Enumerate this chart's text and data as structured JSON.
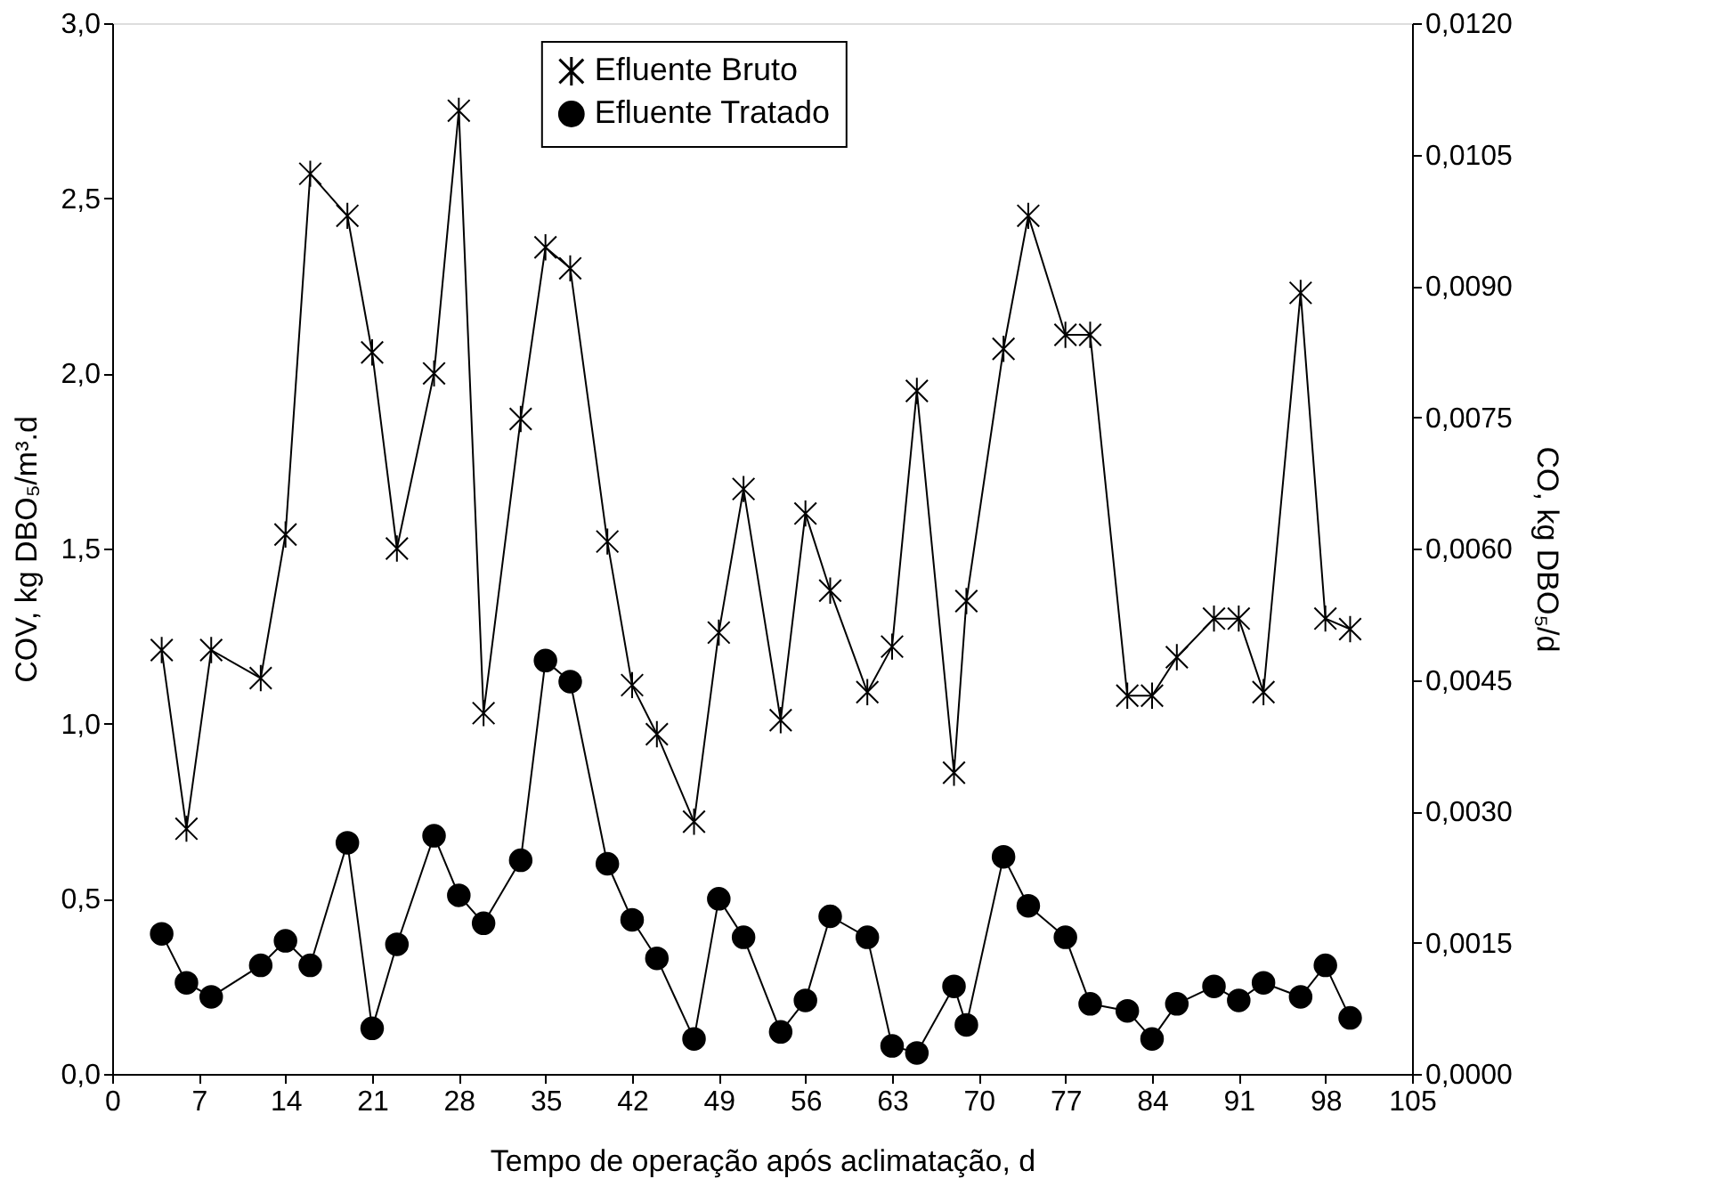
{
  "chart_data": {
    "type": "line",
    "xlabel": "Tempo de operação após aclimatação, d",
    "ylabel": "COV, kg DBO₅/m³.d",
    "y2label": "CO, kg DBO₅/d",
    "x": [
      4,
      6,
      8,
      12,
      14,
      16,
      19,
      21,
      23,
      26,
      28,
      30,
      33,
      35,
      37,
      40,
      42,
      44,
      47,
      49,
      51,
      54,
      56,
      58,
      61,
      63,
      65,
      68,
      69,
      72,
      74,
      77,
      79,
      82,
      84,
      86,
      89,
      91,
      93,
      96,
      98,
      100
    ],
    "series": [
      {
        "name": "Efluente Bruto",
        "color": "#000000",
        "marker": "cross",
        "values": [
          1.21,
          0.7,
          1.21,
          1.13,
          1.54,
          2.57,
          2.45,
          2.06,
          1.5,
          2.0,
          2.75,
          1.03,
          1.87,
          2.36,
          2.3,
          1.52,
          1.11,
          0.97,
          0.72,
          1.26,
          1.67,
          1.01,
          1.6,
          1.38,
          1.09,
          1.22,
          1.95,
          0.86,
          1.35,
          2.07,
          2.45,
          2.11,
          2.11,
          1.08,
          1.08,
          1.19,
          1.3,
          1.3,
          1.09,
          2.23,
          1.3,
          1.27
        ]
      },
      {
        "name": "Efluente Tratado",
        "color": "#000000",
        "marker": "circle",
        "values": [
          0.4,
          0.26,
          0.22,
          0.31,
          0.38,
          0.31,
          0.66,
          0.13,
          0.37,
          0.68,
          0.51,
          0.43,
          0.61,
          1.18,
          1.12,
          0.6,
          0.44,
          0.33,
          0.1,
          0.5,
          0.39,
          0.12,
          0.21,
          0.45,
          0.39,
          0.08,
          0.06,
          0.25,
          0.14,
          0.62,
          0.48,
          0.39,
          0.2,
          0.18,
          0.1,
          0.2,
          0.25,
          0.21,
          0.26,
          0.22,
          0.31,
          0.16
        ]
      }
    ],
    "xlim": [
      0,
      105
    ],
    "xticks": [
      0,
      7,
      14,
      21,
      28,
      35,
      42,
      49,
      56,
      63,
      70,
      77,
      84,
      91,
      98,
      105
    ],
    "ylim": [
      0,
      3
    ],
    "yticks": [
      {
        "value": 0,
        "label": "0,0"
      },
      {
        "value": 0.5,
        "label": "0,5"
      },
      {
        "value": 1,
        "label": "1,0"
      },
      {
        "value": 1.5,
        "label": "1,5"
      },
      {
        "value": 2,
        "label": "2,0"
      },
      {
        "value": 2.5,
        "label": "2,5"
      },
      {
        "value": 3,
        "label": "3,0"
      }
    ],
    "y2lim": [
      0,
      0.012
    ],
    "y2ticks": [
      {
        "value": 0,
        "label": "0,0000"
      },
      {
        "value": 0.0015,
        "label": "0,0015"
      },
      {
        "value": 0.003,
        "label": "0,0030"
      },
      {
        "value": 0.0045,
        "label": "0,0045"
      },
      {
        "value": 0.006,
        "label": "0,0060"
      },
      {
        "value": 0.0075,
        "label": "0,0075"
      },
      {
        "value": 0.009,
        "label": "0,0090"
      },
      {
        "value": 0.0105,
        "label": "0,0105"
      },
      {
        "value": 0.012,
        "label": "0,0120"
      }
    ],
    "grid": false,
    "legend": "top",
    "line_style": "solid"
  }
}
